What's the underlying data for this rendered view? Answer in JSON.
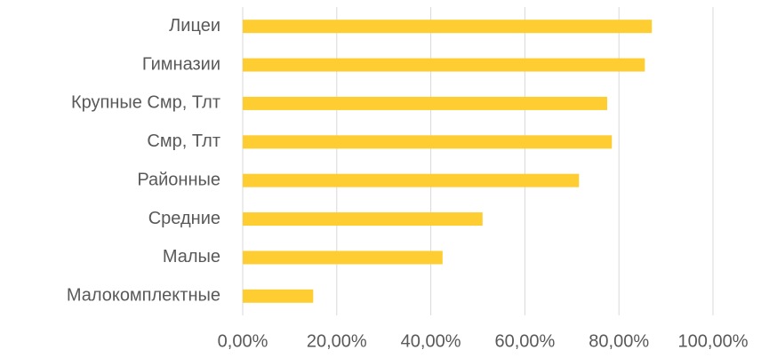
{
  "chart_data": {
    "type": "hbar",
    "categories": [
      "Лицеи",
      "Гимназии",
      "Крупные Смр, Тлт",
      "Смр, Тлт",
      "Районные",
      "Средние",
      "Малые",
      "Малокомплектные"
    ],
    "values": [
      87,
      85.5,
      77.5,
      78.5,
      71.5,
      51,
      42.5,
      15
    ],
    "color": "#fdcd32",
    "xlim": [
      0,
      100
    ],
    "xticks": [
      {
        "value": 0,
        "label": "0,00%"
      },
      {
        "value": 20,
        "label": "20,00%"
      },
      {
        "value": 40,
        "label": "40,00%"
      },
      {
        "value": 60,
        "label": "60,00%"
      },
      {
        "value": 80,
        "label": "80,00%"
      },
      {
        "value": 100,
        "label": "100,00%"
      }
    ],
    "grid": true
  }
}
